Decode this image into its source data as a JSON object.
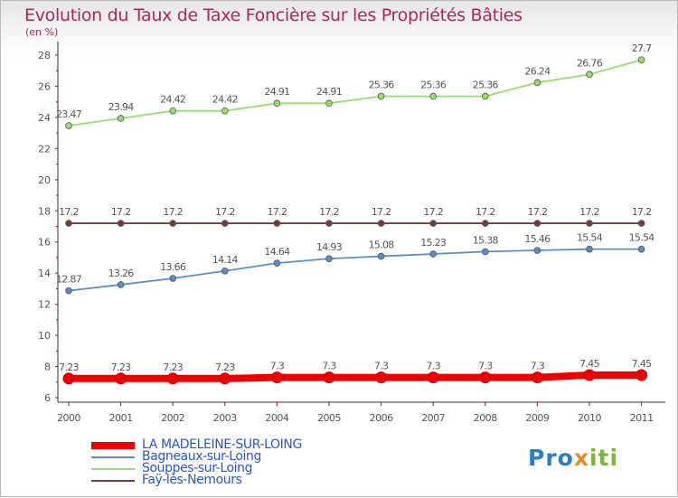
{
  "header": {
    "title": "Evolution du Taux de Taxe Foncière sur les Propriétés Bâties",
    "unit": "(en %)"
  },
  "logo": {
    "part1": "Pro",
    "part2": "x",
    "part3": "iti"
  },
  "chart_data": {
    "type": "line",
    "x": [
      "2000",
      "2001",
      "2002",
      "2003",
      "2004",
      "2005",
      "2006",
      "2007",
      "2008",
      "2009",
      "2010",
      "2011"
    ],
    "ylim": [
      6,
      28
    ],
    "yticks": [
      6,
      8,
      10,
      12,
      14,
      16,
      18,
      20,
      22,
      24,
      26,
      28
    ],
    "grid": false,
    "legend_position": "bottom-left",
    "series": [
      {
        "name": "LA MADELEINE-SUR-LOING",
        "color": "#ee0000",
        "emphasis": true,
        "values": [
          7.23,
          7.23,
          7.23,
          7.23,
          7.3,
          7.3,
          7.3,
          7.3,
          7.3,
          7.3,
          7.45,
          7.45
        ],
        "labels": [
          "7.23",
          "7.23",
          "7.23",
          "7.23",
          "7.3",
          "7.3",
          "7.3",
          "7.3",
          "7.3",
          "7.3",
          "7.45",
          "7.45"
        ]
      },
      {
        "name": "Bagneaux-sur-Loing",
        "color": "#5b8ec9",
        "values": [
          12.87,
          13.26,
          13.66,
          14.14,
          14.64,
          14.93,
          15.08,
          15.23,
          15.38,
          15.46,
          15.54,
          15.54
        ],
        "labels": [
          "12.87",
          "13.26",
          "13.66",
          "14.14",
          "14.64",
          "14.93",
          "15.08",
          "15.23",
          "15.38",
          "15.46",
          "15.54",
          "15.54"
        ]
      },
      {
        "name": "Souppes-sur-Loing",
        "color": "#99dd70",
        "values": [
          23.47,
          23.94,
          24.42,
          24.42,
          24.91,
          24.91,
          25.36,
          25.36,
          25.36,
          26.24,
          26.76,
          27.7
        ],
        "labels": [
          "23.47",
          "23.94",
          "24.42",
          "24.42",
          "24.91",
          "24.91",
          "25.36",
          "25.36",
          "25.36",
          "26.24",
          "26.76",
          "27.7"
        ]
      },
      {
        "name": "Faÿ-lès-Nemours",
        "color": "#7a3a3a",
        "values": [
          17.2,
          17.2,
          17.2,
          17.2,
          17.2,
          17.2,
          17.2,
          17.2,
          17.2,
          17.2,
          17.2,
          17.2
        ],
        "labels": [
          "17.2",
          "17.2",
          "17.2",
          "17.2",
          "17.2",
          "17.2",
          "17.2",
          "17.2",
          "17.2",
          "17.2",
          "17.2",
          "17.2"
        ]
      }
    ]
  }
}
